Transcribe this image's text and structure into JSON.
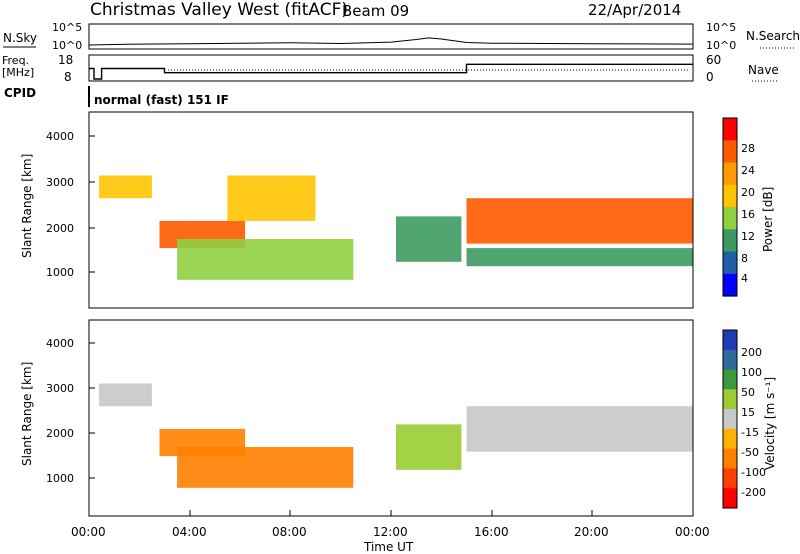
{
  "header": {
    "title": "Christmas Valley West (fitACF)",
    "beam": "Beam 09",
    "date": "22/Apr/2014"
  },
  "nsky_panel": {
    "label": "N.Sky",
    "left_ticks": [
      "10^5",
      "10^0"
    ],
    "right_ticks": [
      "10^5",
      "10^0"
    ],
    "right_label": "N.Search"
  },
  "freq_panel": {
    "label_line1": "Freq.",
    "label_line2": "[MHz]",
    "left_ticks": [
      "18",
      "8"
    ],
    "right_ticks": [
      "60",
      "0"
    ],
    "right_label": "Nave"
  },
  "cpid": {
    "label": "CPID",
    "text": "normal (fast) 151 IF"
  },
  "power_panel": {
    "ylabel": "Slant Range [km]",
    "y_ticks": [
      "4000",
      "3000",
      "2000",
      "1000"
    ],
    "colorbar_label": "Power [dB]",
    "colorbar_ticks": [
      "28",
      "24",
      "20",
      "16",
      "12",
      "8",
      "4"
    ]
  },
  "velocity_panel": {
    "ylabel": "Slant Range [km]",
    "y_ticks": [
      "4000",
      "3000",
      "2000",
      "1000"
    ],
    "colorbar_label": "Velocity [m s⁻¹]",
    "colorbar_ticks": [
      "200",
      "100",
      "50",
      "15",
      "-15",
      "-50",
      "-100",
      "-200"
    ]
  },
  "x_axis": {
    "ticks": [
      "00:00",
      "04:00",
      "08:00",
      "12:00",
      "16:00",
      "20:00",
      "00:00"
    ],
    "label": "Time UT"
  },
  "colors": {
    "power_scale": [
      "#ff0000",
      "#ff5a00",
      "#ff9a00",
      "#ffc400",
      "#8fd040",
      "#3c9a60",
      "#1e5fa8",
      "#0000ff"
    ],
    "velocity_scale": [
      "#1e3cb4",
      "#2e6a9e",
      "#3c9a3c",
      "#9acd32",
      "#c8c8c8",
      "#ffb000",
      "#ff8000",
      "#ff4000",
      "#ff0000"
    ]
  },
  "chart_data": [
    {
      "type": "line",
      "title": "N.Sky",
      "x_range_hours": [
        0,
        24
      ],
      "yscale": "log",
      "ylim": [
        1,
        100000
      ],
      "series": [
        {
          "x": [
            0,
            1,
            2,
            4,
            6,
            8,
            10,
            12,
            13,
            13.5,
            14,
            15,
            16,
            20,
            24
          ],
          "y": [
            3,
            4,
            5,
            6,
            8,
            10,
            7,
            15,
            60,
            150,
            80,
            12,
            8,
            6,
            5
          ]
        }
      ]
    },
    {
      "type": "line",
      "title": "Freq.",
      "x_range_hours": [
        0,
        24
      ],
      "ylim": [
        8,
        18
      ],
      "series": [
        {
          "x": [
            0,
            0.2,
            0.5,
            2.5,
            3.0,
            15.0,
            24
          ],
          "y": [
            13,
            8,
            13,
            13,
            11,
            15,
            15
          ]
        }
      ]
    },
    {
      "type": "heatmap",
      "title": "Power",
      "x_range_hours": [
        0,
        24
      ],
      "ylim": [
        180,
        4500
      ],
      "zlim": [
        0,
        30
      ],
      "features": [
        {
          "t": [
            0.4,
            2.5
          ],
          "range_km": [
            2600,
            3100
          ],
          "power_db": 20
        },
        {
          "t": [
            2.8,
            6.2
          ],
          "range_km": [
            1500,
            2100
          ],
          "power_db": 26
        },
        {
          "t": [
            5.5,
            9.0
          ],
          "range_km": [
            2100,
            3100
          ],
          "power_db": 18
        },
        {
          "t": [
            3.5,
            10.5
          ],
          "range_km": [
            800,
            1700
          ],
          "power_db": 14
        },
        {
          "t": [
            12.2,
            14.8
          ],
          "range_km": [
            1200,
            2200
          ],
          "power_db": 12
        },
        {
          "t": [
            15.0,
            24.0
          ],
          "range_km": [
            1600,
            2600
          ],
          "power_db": 26
        },
        {
          "t": [
            15.0,
            24.0
          ],
          "range_km": [
            1100,
            1500
          ],
          "power_db": 10
        }
      ]
    },
    {
      "type": "heatmap",
      "title": "Velocity",
      "x_range_hours": [
        0,
        24
      ],
      "ylim": [
        180,
        4500
      ],
      "zlim": [
        -200,
        200
      ],
      "features": [
        {
          "t": [
            0.4,
            2.5
          ],
          "range_km": [
            2600,
            3100
          ],
          "velocity": 0
        },
        {
          "t": [
            2.8,
            6.2
          ],
          "range_km": [
            1500,
            2100
          ],
          "velocity": -40
        },
        {
          "t": [
            3.5,
            10.5
          ],
          "range_km": [
            800,
            1700
          ],
          "velocity": -70
        },
        {
          "t": [
            12.2,
            14.8
          ],
          "range_km": [
            1200,
            2200
          ],
          "velocity": 30
        },
        {
          "t": [
            15.0,
            24.0
          ],
          "range_km": [
            1600,
            2600
          ],
          "velocity": 0
        }
      ]
    }
  ]
}
